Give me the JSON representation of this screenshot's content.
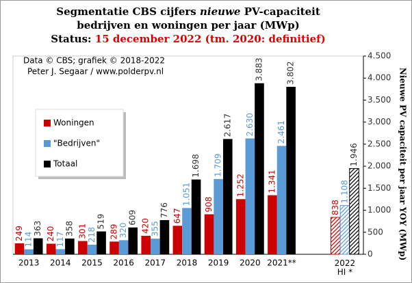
{
  "chart_data": {
    "type": "bar",
    "title": [
      "Segmentatie CBS cijfers",
      "nieuwe",
      "PV-capaciteit",
      "bedrijven en woningen per jaar (MWp)"
    ],
    "subtitle": {
      "label": "Status:",
      "text": "15 december 2022 (tm. 2020: definitief)"
    },
    "annotations": [
      "Data © CBS; grafiek © 2018-2022",
      "Peter J. Segaar / www.polderpv.nl"
    ],
    "y_axis_label": "Nieuwe PV capaciteit per jaar YOY (MWp)",
    "categories": [
      "2013",
      "2014",
      "2015",
      "2016",
      "2017",
      "2018",
      "2019",
      "2020",
      "2021**",
      null,
      "2022\nHI *"
    ],
    "series": [
      {
        "name": "Woningen",
        "color": "#cc0000",
        "values": [
          249,
          240,
          301,
          289,
          420,
          647,
          908,
          1252,
          1341,
          null,
          838
        ],
        "value_labels": [
          "249",
          "240",
          "301",
          "289",
          "420",
          "647",
          "908",
          "1.252",
          "1.341",
          null,
          "838"
        ]
      },
      {
        "name": "\"Bedrijven\"",
        "color": "#5b9bd5",
        "values": [
          114,
          117,
          218,
          320,
          355,
          1051,
          1709,
          2630,
          2461,
          null,
          1108
        ],
        "value_labels": [
          "114",
          "117",
          "218",
          "320",
          "355",
          "1.051",
          "1.709",
          "2.630",
          "2.461",
          null,
          "1.108"
        ]
      },
      {
        "name": "Totaal",
        "color": "#000000",
        "values": [
          363,
          358,
          519,
          609,
          776,
          1698,
          2617,
          3883,
          3802,
          null,
          1946
        ],
        "value_labels": [
          "363",
          "358",
          "519",
          "609",
          "776",
          "1.698",
          "2.617",
          "3.883",
          "3.802",
          null,
          "1.946"
        ]
      }
    ],
    "ylim": [
      0,
      4500
    ],
    "yticks": [
      0,
      500,
      {
        "value": 1000,
        "label": "1.000"
      },
      {
        "value": 1500,
        "label": "1.500"
      },
      {
        "value": 2000,
        "label": "2.000"
      },
      {
        "value": 2500,
        "label": "2.500"
      },
      {
        "value": 3000,
        "label": "3.000"
      },
      {
        "value": 3500,
        "label": "3.500"
      },
      {
        "value": 4000,
        "label": "4.000"
      },
      {
        "value": 4500,
        "label": "4.500"
      }
    ],
    "y_axis_side": "right",
    "legend": "left",
    "hatch_last": true,
    "grid": false
  }
}
